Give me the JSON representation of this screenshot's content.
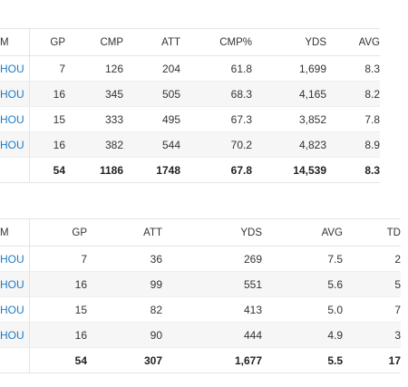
{
  "passing": {
    "headers": [
      "M",
      "GP",
      "CMP",
      "ATT",
      "CMP%",
      "YDS",
      "AVG"
    ],
    "rows": [
      [
        "HOU",
        "7",
        "126",
        "204",
        "61.8",
        "1,699",
        "8.3"
      ],
      [
        "HOU",
        "16",
        "345",
        "505",
        "68.3",
        "4,165",
        "8.2"
      ],
      [
        "HOU",
        "15",
        "333",
        "495",
        "67.3",
        "3,852",
        "7.8"
      ],
      [
        "HOU",
        "16",
        "382",
        "544",
        "70.2",
        "4,823",
        "8.9"
      ]
    ],
    "totals": [
      "",
      "54",
      "1186",
      "1748",
      "67.8",
      "14,539",
      "8.3"
    ]
  },
  "rushing": {
    "headers": [
      "M",
      "GP",
      "ATT",
      "YDS",
      "AVG",
      "TD"
    ],
    "rows": [
      [
        "HOU",
        "7",
        "36",
        "269",
        "7.5",
        "2"
      ],
      [
        "HOU",
        "16",
        "99",
        "551",
        "5.6",
        "5"
      ],
      [
        "HOU",
        "15",
        "82",
        "413",
        "5.0",
        "7"
      ],
      [
        "HOU",
        "16",
        "90",
        "444",
        "4.9",
        "3"
      ]
    ],
    "totals": [
      "",
      "54",
      "307",
      "1,677",
      "5.5",
      "17"
    ]
  }
}
